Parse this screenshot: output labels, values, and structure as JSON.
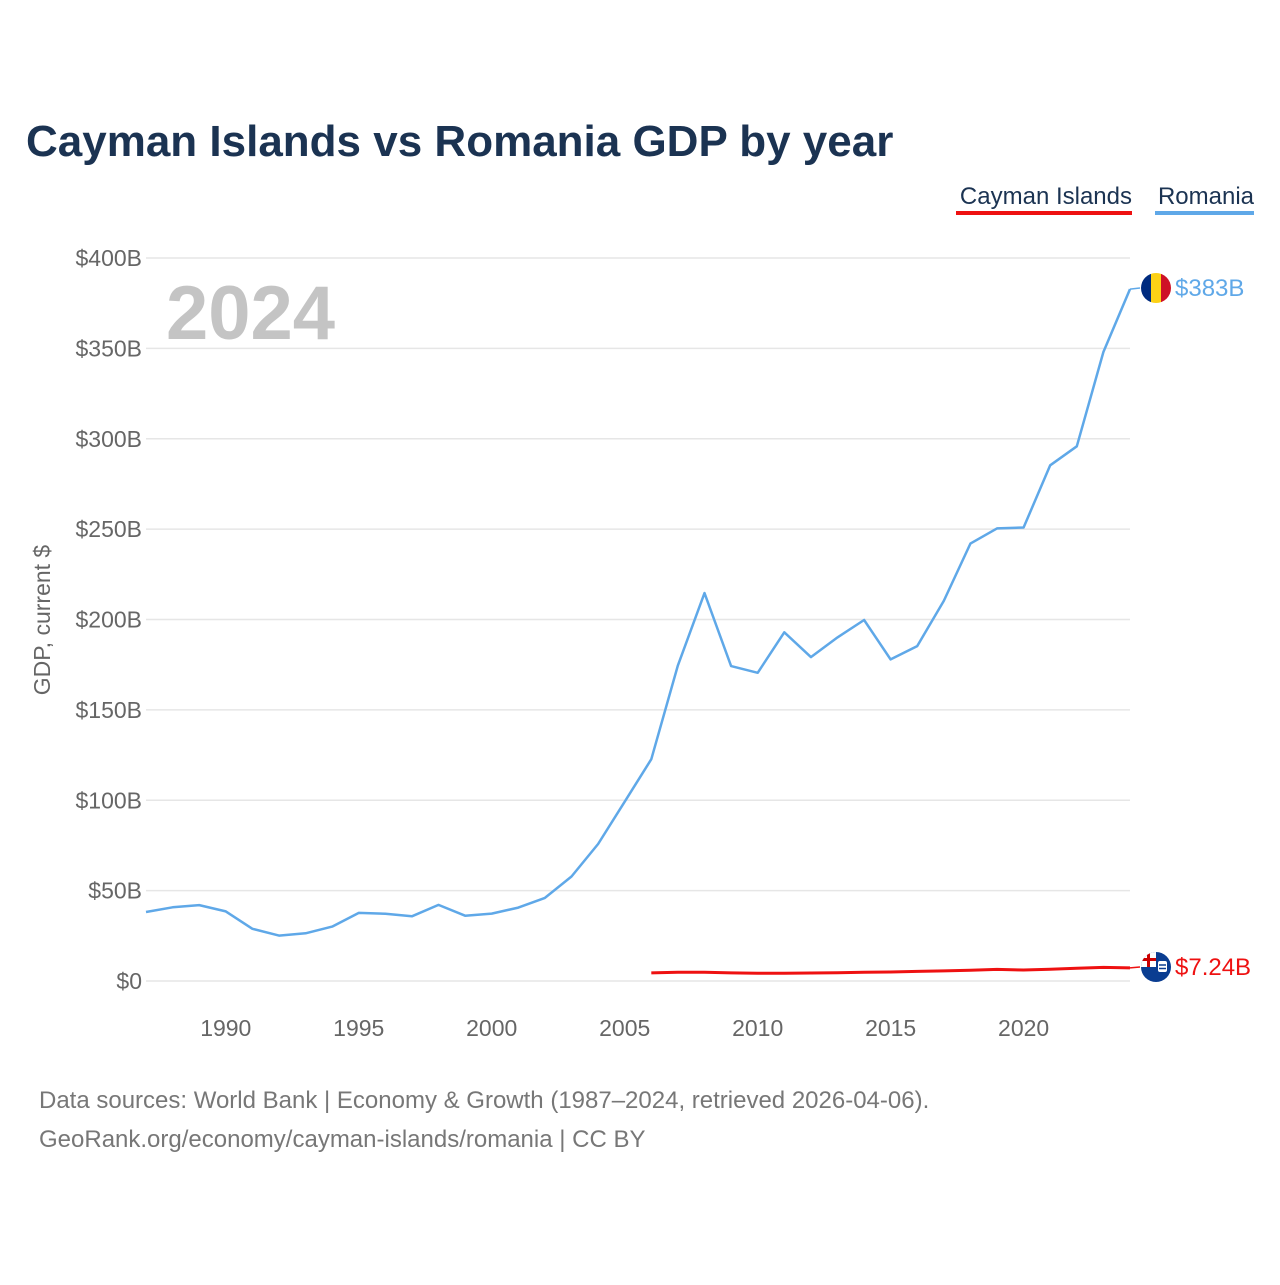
{
  "chart_data": {
    "type": "line",
    "title": "Cayman Islands vs Romania GDP by year",
    "ylabel": "GDP, current $",
    "xlabel": "",
    "xlim": [
      1987,
      2024
    ],
    "ylim": [
      0,
      400
    ],
    "grid": true,
    "legend_position": "top-right",
    "watermark_year": "2024",
    "x_ticks": [
      {
        "value": 1990,
        "label": "1990"
      },
      {
        "value": 1995,
        "label": "1995"
      },
      {
        "value": 2000,
        "label": "2000"
      },
      {
        "value": 2005,
        "label": "2005"
      },
      {
        "value": 2010,
        "label": "2010"
      },
      {
        "value": 2015,
        "label": "2015"
      },
      {
        "value": 2020,
        "label": "2020"
      }
    ],
    "y_ticks": [
      {
        "value": 0,
        "label": "$0"
      },
      {
        "value": 50,
        "label": "$50B"
      },
      {
        "value": 100,
        "label": "$100B"
      },
      {
        "value": 150,
        "label": "$150B"
      },
      {
        "value": 200,
        "label": "$200B"
      },
      {
        "value": 250,
        "label": "$250B"
      },
      {
        "value": 300,
        "label": "$300B"
      },
      {
        "value": 350,
        "label": "$350B"
      },
      {
        "value": 400,
        "label": "$400B"
      }
    ],
    "series": [
      {
        "name": "Cayman Islands",
        "color": "#ee1111",
        "end_label": "$7.24B",
        "flag_icon": "cayman-islands-flag-icon",
        "x": [
          2006,
          2007,
          2008,
          2009,
          2010,
          2011,
          2012,
          2013,
          2014,
          2015,
          2016,
          2017,
          2018,
          2019,
          2020,
          2021,
          2022,
          2023,
          2024
        ],
        "values": [
          4.5,
          4.8,
          4.8,
          4.5,
          4.3,
          4.3,
          4.4,
          4.6,
          4.8,
          5.0,
          5.3,
          5.6,
          6.0,
          6.4,
          6.1,
          6.5,
          7.0,
          7.5,
          7.24
        ]
      },
      {
        "name": "Romania",
        "color": "#5fa8e8",
        "end_label": "$383B",
        "flag_icon": "romania-flag-icon",
        "x": [
          1987,
          1988,
          1989,
          1990,
          1991,
          1992,
          1993,
          1994,
          1995,
          1996,
          1997,
          1998,
          1999,
          2000,
          2001,
          2002,
          2003,
          2004,
          2005,
          2006,
          2007,
          2008,
          2009,
          2010,
          2011,
          2012,
          2013,
          2014,
          2015,
          2016,
          2017,
          2018,
          2019,
          2020,
          2021,
          2022,
          2023,
          2024
        ],
        "values": [
          38.2,
          40.8,
          42.0,
          38.5,
          28.9,
          25.1,
          26.4,
          30.1,
          37.7,
          37.2,
          35.8,
          42.1,
          36.1,
          37.3,
          40.6,
          46.0,
          57.8,
          75.8,
          99.2,
          122.7,
          174.6,
          214.6,
          174.2,
          170.5,
          192.9,
          179.2,
          190.1,
          199.7,
          177.9,
          185.3,
          210.3,
          242.0,
          250.4,
          250.9,
          285.3,
          295.8,
          348.0,
          382.8
        ]
      }
    ]
  },
  "source": {
    "line1": "Data sources: World Bank | Economy & Growth (1987–2024, retrieved 2026-04-06).",
    "line2": "GeoRank.org/economy/cayman-islands/romania | CC BY"
  }
}
